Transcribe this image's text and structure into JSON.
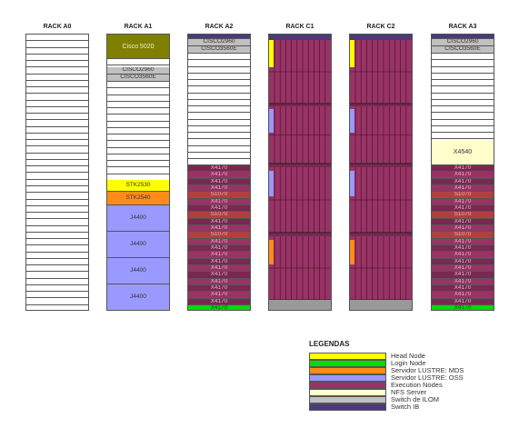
{
  "racks": [
    {
      "key": "a0",
      "title": "RACK A0"
    },
    {
      "key": "a1",
      "title": "RACK A1"
    },
    {
      "key": "a2",
      "title": "RACK A2"
    },
    {
      "key": "c1",
      "title": "RACK C1"
    },
    {
      "key": "c2",
      "title": "RACK C2"
    },
    {
      "key": "a3",
      "title": "RACK A3"
    }
  ],
  "colors": {
    "head_node": "#ffff00",
    "login_node": "#00dd00",
    "lustre_mds": "#ff8c1a",
    "lustre_oss": "#9999ff",
    "execution": "#993366",
    "execution_dark": "#7a2850",
    "execution_alt": "#b04040",
    "nfs": "#ffffcc",
    "switch_ilom": "#c0c0c0",
    "switch_ib": "#4b3b78",
    "cisco5020": "#808000",
    "x4170_row": "#a03a3a"
  },
  "rack_a1": {
    "cisco5020": "Cisco 5020",
    "cisco2960": "CISCO2960",
    "cisco3560": "CISCO3560E",
    "stk2530": "STK2530",
    "stk2540": "STK2540",
    "j4400_1": "J4400",
    "j4400_2": "J4400",
    "j4400_3": "J4400",
    "j4400_4": "J4400"
  },
  "rack_a2": {
    "cisco2960": "CISCO2960",
    "cisco3560": "CISCO3560E",
    "rows": [
      "X4170",
      "X4170",
      "X4170",
      "X4170",
      "S1070",
      "X4170",
      "X4170",
      "S1070",
      "X4170",
      "X4170",
      "S1070",
      "X4170",
      "X4170",
      "X4170",
      "X4170",
      "X4170",
      "X4170",
      "X4170",
      "X4170",
      "X4170",
      "X4170"
    ],
    "bottom": "X4170"
  },
  "rack_a3": {
    "cisco2960": "CISCO2960",
    "cisco3560": "CISCO3560E",
    "x4540": "X4540",
    "rows": [
      "X4170",
      "X4170",
      "X4170",
      "X4170",
      "S1070",
      "X4170",
      "X4170",
      "S1070",
      "X4170",
      "X4170",
      "S1070",
      "X4170",
      "X4170",
      "X4170",
      "X4170",
      "X4170",
      "X4170",
      "X4170",
      "X4170",
      "X4170",
      "X4170"
    ],
    "bottom": "X4170"
  },
  "legend": {
    "title": "LEGENDAS",
    "items": [
      {
        "label": "Head Node",
        "color": "#ffff00"
      },
      {
        "label": "Login Node",
        "color": "#00dd00"
      },
      {
        "label": "Servidor LUSTRE: MDS",
        "color": "#ff8c1a"
      },
      {
        "label": "Servidor LUSTRE: OSS",
        "color": "#9999ff"
      },
      {
        "label": "Execution Nodes",
        "color": "#993366"
      },
      {
        "label": "NFS Server",
        "color": "#ffffcc"
      },
      {
        "label": "Switch de ILOM",
        "color": "#c0c0c0"
      },
      {
        "label": "Switch IB",
        "color": "#4b3b78"
      }
    ]
  }
}
